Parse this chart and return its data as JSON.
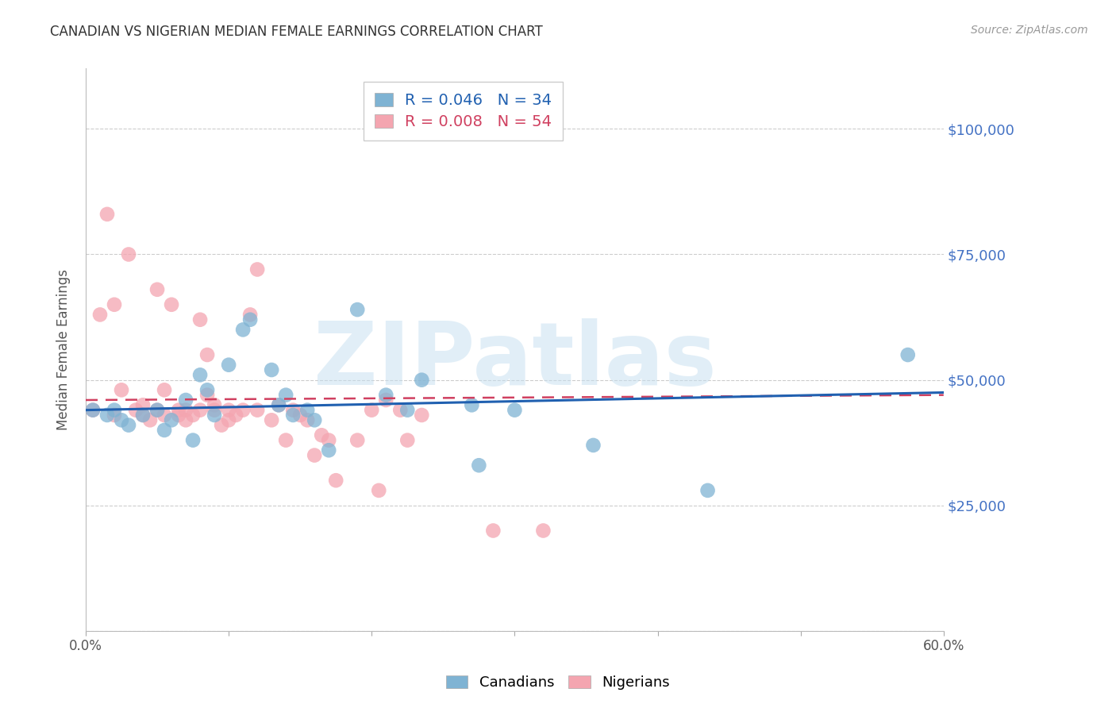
{
  "title": "CANADIAN VS NIGERIAN MEDIAN FEMALE EARNINGS CORRELATION CHART",
  "source": "Source: ZipAtlas.com",
  "ylabel": "Median Female Earnings",
  "xlim": [
    0.0,
    0.6
  ],
  "ylim": [
    0,
    112000
  ],
  "yticks": [
    0,
    25000,
    50000,
    75000,
    100000
  ],
  "ytick_labels": [
    "",
    "$25,000",
    "$50,000",
    "$75,000",
    "$100,000"
  ],
  "xticks": [
    0.0,
    0.1,
    0.2,
    0.3,
    0.4,
    0.5,
    0.6
  ],
  "xtick_labels": [
    "0.0%",
    "",
    "",
    "",
    "",
    "",
    "60.0%"
  ],
  "canadian_R": 0.046,
  "canadian_N": 34,
  "nigerian_R": 0.008,
  "nigerian_N": 54,
  "blue_color": "#7fb3d3",
  "pink_color": "#f4a5b0",
  "blue_line_color": "#2060b0",
  "pink_line_color": "#d04060",
  "grid_color": "#cccccc",
  "watermark": "ZIPatlas",
  "canadians_x": [
    0.005,
    0.015,
    0.02,
    0.025,
    0.03,
    0.04,
    0.05,
    0.055,
    0.06,
    0.07,
    0.075,
    0.08,
    0.085,
    0.09,
    0.1,
    0.11,
    0.115,
    0.13,
    0.135,
    0.14,
    0.145,
    0.155,
    0.16,
    0.17,
    0.19,
    0.21,
    0.225,
    0.235,
    0.27,
    0.275,
    0.3,
    0.355,
    0.435,
    0.575
  ],
  "canadians_y": [
    44000,
    43000,
    44000,
    42000,
    41000,
    43000,
    44000,
    40000,
    42000,
    46000,
    38000,
    51000,
    48000,
    43000,
    53000,
    60000,
    62000,
    52000,
    45000,
    47000,
    43000,
    44000,
    42000,
    36000,
    64000,
    47000,
    44000,
    50000,
    45000,
    33000,
    44000,
    37000,
    28000,
    55000
  ],
  "nigerians_x": [
    0.005,
    0.01,
    0.015,
    0.02,
    0.02,
    0.025,
    0.03,
    0.035,
    0.04,
    0.04,
    0.045,
    0.05,
    0.05,
    0.055,
    0.055,
    0.06,
    0.065,
    0.065,
    0.07,
    0.07,
    0.075,
    0.08,
    0.08,
    0.085,
    0.085,
    0.09,
    0.09,
    0.095,
    0.1,
    0.1,
    0.105,
    0.11,
    0.115,
    0.12,
    0.13,
    0.135,
    0.14,
    0.145,
    0.15,
    0.155,
    0.16,
    0.165,
    0.17,
    0.175,
    0.19,
    0.2,
    0.205,
    0.21,
    0.22,
    0.225,
    0.235,
    0.285,
    0.32,
    0.12
  ],
  "nigerians_y": [
    44000,
    63000,
    83000,
    65000,
    43000,
    48000,
    75000,
    44000,
    45000,
    43000,
    42000,
    68000,
    44000,
    48000,
    43000,
    65000,
    44000,
    43000,
    42000,
    44000,
    43000,
    62000,
    44000,
    55000,
    47000,
    45000,
    44000,
    41000,
    42000,
    44000,
    43000,
    44000,
    63000,
    44000,
    42000,
    45000,
    38000,
    44000,
    43000,
    42000,
    35000,
    39000,
    38000,
    30000,
    38000,
    44000,
    28000,
    46000,
    44000,
    38000,
    43000,
    20000,
    20000,
    72000
  ]
}
